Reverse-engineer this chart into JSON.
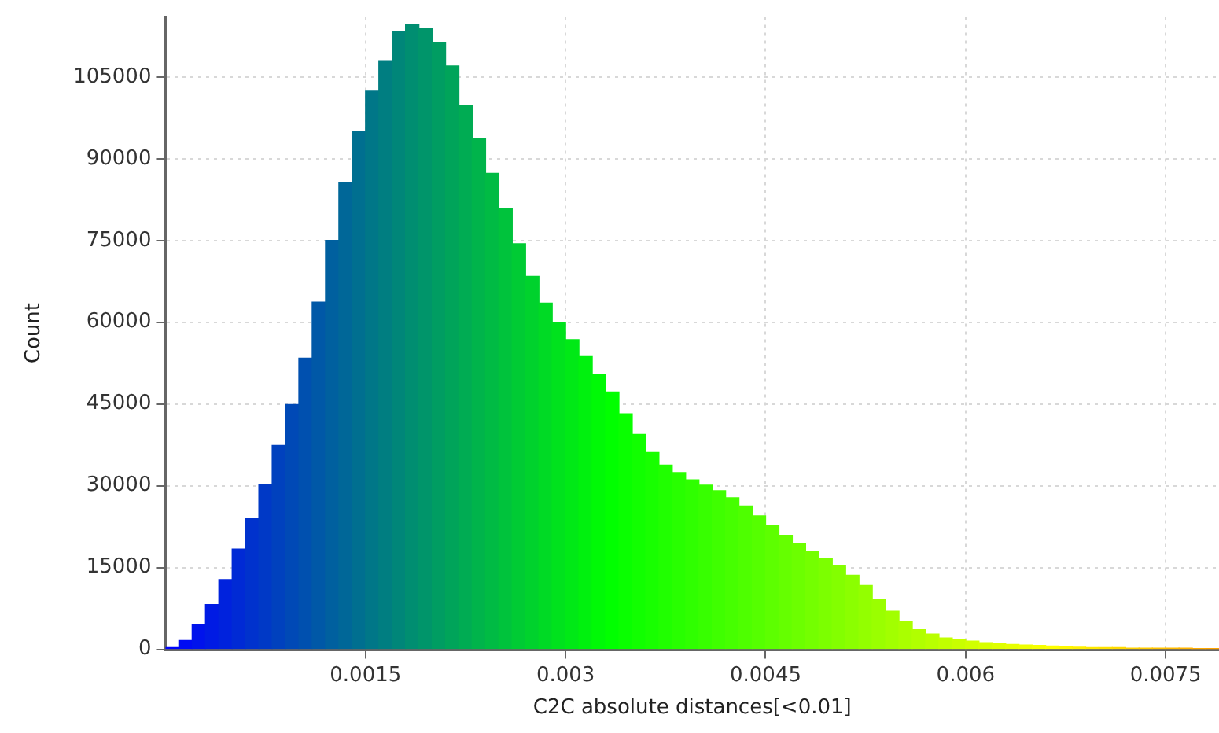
{
  "chart_data": {
    "type": "histogram",
    "xlabel": "C2C absolute distances[<0.01]",
    "ylabel": "Count",
    "bins": [
      0,
      0.0001,
      0.0002,
      0.0003,
      0.0004,
      0.0005,
      0.0006,
      0.0007,
      0.0008,
      0.0009,
      0.001,
      0.0011,
      0.0012,
      0.0013,
      0.0014,
      0.0015,
      0.0016,
      0.0017,
      0.0018,
      0.0019,
      0.002,
      0.0021,
      0.0022,
      0.0023,
      0.0024,
      0.0025,
      0.0026,
      0.0027,
      0.0028,
      0.0029,
      0.003,
      0.0031,
      0.0032,
      0.0033,
      0.0034,
      0.0035,
      0.0036,
      0.0037,
      0.0038,
      0.0039,
      0.004,
      0.0041,
      0.0042,
      0.0043,
      0.0044,
      0.0045,
      0.0046,
      0.0047,
      0.0048,
      0.0049,
      0.005,
      0.0051,
      0.0052,
      0.0053,
      0.0054,
      0.0055,
      0.0056,
      0.0057,
      0.0058,
      0.0059,
      0.006,
      0.0061,
      0.0062,
      0.0063,
      0.0064,
      0.0065,
      0.0066,
      0.0067,
      0.0068,
      0.0069,
      0.007,
      0.0071,
      0.0072,
      0.0073,
      0.0074,
      0.0075,
      0.0076,
      0.0077,
      0.0078,
      0.0079
    ],
    "values": [
      300,
      1600,
      4500,
      8200,
      12800,
      18400,
      24100,
      30300,
      37400,
      44900,
      53400,
      63700,
      75000,
      85700,
      95000,
      102400,
      108000,
      113400,
      114700,
      113900,
      111300,
      107000,
      99700,
      93700,
      87300,
      80800,
      74400,
      68400,
      63500,
      59900,
      56800,
      53700,
      50500,
      47200,
      43200,
      39400,
      36100,
      33800,
      32400,
      31100,
      30100,
      29100,
      27800,
      26300,
      24500,
      22700,
      20900,
      19400,
      17900,
      16600,
      15400,
      13600,
      11700,
      9200,
      7000,
      5100,
      3600,
      2800,
      2100,
      1800,
      1500,
      1200,
      1000,
      900,
      800,
      700,
      600,
      500,
      400,
      300,
      300,
      300,
      200,
      200,
      200,
      200,
      200,
      100,
      100
    ],
    "colors": [
      "#0004fb",
      "#000bf4",
      "#0013ec",
      "#001be4",
      "#0022dd",
      "#002ad5",
      "#0032cd",
      "#0039c6",
      "#0041be",
      "#0049b6",
      "#0050af",
      "#0058a7",
      "#00609f",
      "#006798",
      "#006f90",
      "#007788",
      "#007e81",
      "#008679",
      "#008e71",
      "#00956a",
      "#009d62",
      "#00a45a",
      "#00ac53",
      "#00b44b",
      "#00bb44",
      "#00c33c",
      "#00cb34",
      "#00d22d",
      "#00da25",
      "#00e21d",
      "#00e916",
      "#00f10e",
      "#00f906",
      "#01ff00",
      "#09ff00",
      "#11ff00",
      "#18ff00",
      "#20ff00",
      "#28ff00",
      "#2fff00",
      "#37ff00",
      "#3fff00",
      "#46ff00",
      "#4eff00",
      "#55ff00",
      "#5dff00",
      "#65ff00",
      "#6cff00",
      "#74ff00",
      "#7cff00",
      "#83ff00",
      "#8bff00",
      "#93ff00",
      "#9aff00",
      "#a2ff00",
      "#aaff00",
      "#b1ff00",
      "#b9ff00",
      "#c1ff00",
      "#c8ff00",
      "#d0ff00",
      "#d8ff00",
      "#dfff00",
      "#e7ff00",
      "#eeff00",
      "#f6ff00",
      "#feff00",
      "#fff900",
      "#fff100",
      "#ffe900",
      "#ffe200",
      "#ffda00",
      "#ffd200",
      "#ffcb00",
      "#ffc300",
      "#ffbb00",
      "#ffb400",
      "#ffac00",
      "#ffa400"
    ],
    "xlim": [
      0,
      0.0079
    ],
    "xticks": [
      0.0015,
      0.003,
      0.0045,
      0.006,
      0.0075
    ],
    "ylim": [
      0,
      116000
    ],
    "yticks": [
      0,
      15000,
      30000,
      45000,
      60000,
      75000,
      90000,
      105000
    ],
    "grid": true,
    "legend": false
  }
}
